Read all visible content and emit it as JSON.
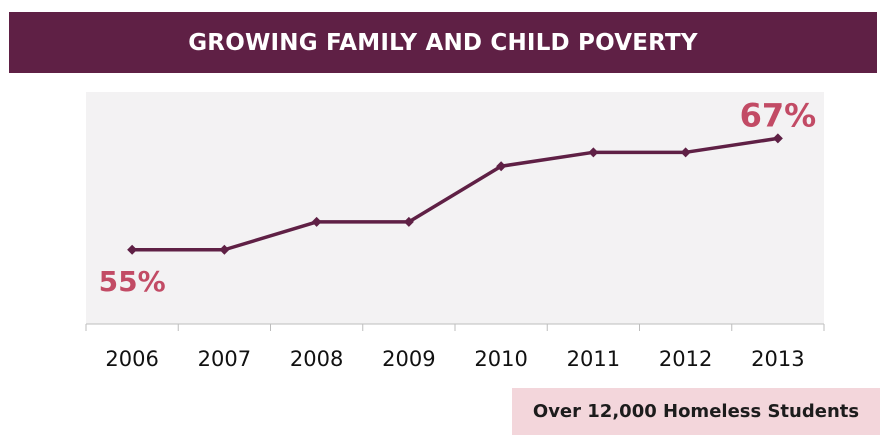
{
  "banner": {
    "title": "GROWING FAMILY AND CHILD POVERTY"
  },
  "footnote": {
    "text": "Over 12,000 Homeless Students"
  },
  "colors": {
    "banner": "#5f2045",
    "line": "#5f2045",
    "label": "#c24b65",
    "plot_bg": "#f3f2f3",
    "footnote_bg": "#f3d6db"
  },
  "chart_data": {
    "type": "line",
    "categories": [
      "2006",
      "2007",
      "2008",
      "2009",
      "2010",
      "2011",
      "2012",
      "2013"
    ],
    "values": [
      55,
      55,
      58,
      58,
      64,
      65.5,
      65.5,
      67
    ],
    "annotations": [
      {
        "category": "2006",
        "text": "55%"
      },
      {
        "category": "2013",
        "text": "67%"
      }
    ],
    "title": "GROWING FAMILY AND CHILD POVERTY",
    "xlabel": "",
    "ylabel": "",
    "ylim": [
      47,
      72
    ],
    "grid": false,
    "legend": "none"
  }
}
